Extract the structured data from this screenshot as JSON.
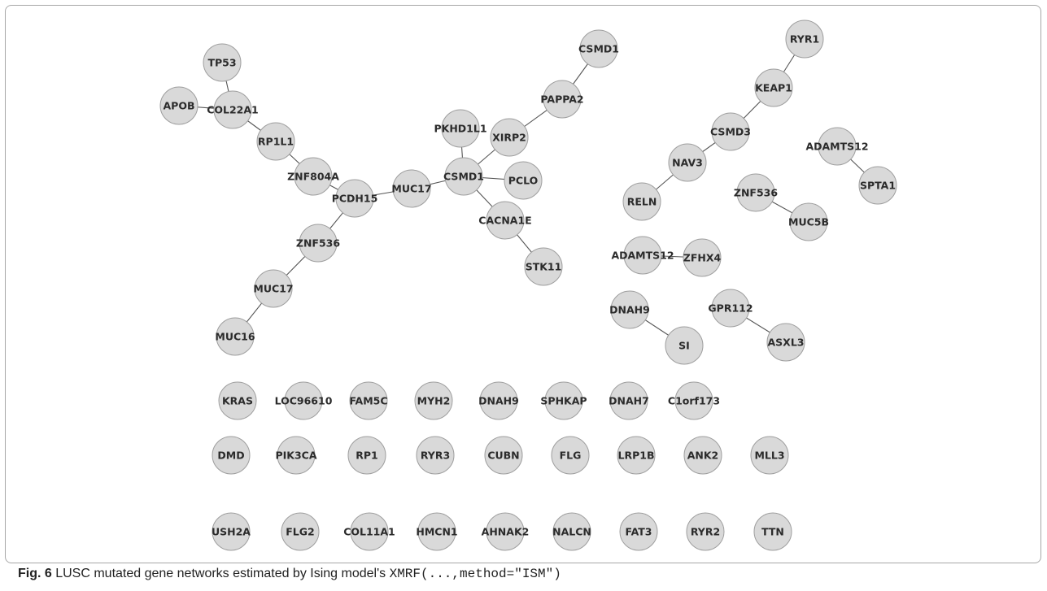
{
  "figure": {
    "label": "Fig. 6",
    "caption_text": " LUSC mutated gene networks estimated by Ising model's ",
    "caption_code": "XMRF(...,method=\"ISM\")"
  },
  "network": {
    "node_color": "#d9d9d9",
    "node_stroke": "#9e9e9e",
    "edge_color": "#555555",
    "nodes": [
      {
        "id": "tp53",
        "label": "TP53"
      },
      {
        "id": "apob",
        "label": "APOB"
      },
      {
        "id": "col22a1",
        "label": "COL22A1"
      },
      {
        "id": "rp1l1",
        "label": "RP1L1"
      },
      {
        "id": "znf804a",
        "label": "ZNF804A"
      },
      {
        "id": "pcdh15",
        "label": "PCDH15"
      },
      {
        "id": "znf536-a",
        "label": "ZNF536"
      },
      {
        "id": "muc17-a",
        "label": "MUC17"
      },
      {
        "id": "muc16",
        "label": "MUC16"
      },
      {
        "id": "muc17-b",
        "label": "MUC17"
      },
      {
        "id": "csmd1-a",
        "label": "CSMD1"
      },
      {
        "id": "pkhd1l1",
        "label": "PKHD1L1"
      },
      {
        "id": "xirp2",
        "label": "XIRP2"
      },
      {
        "id": "pappa2",
        "label": "PAPPA2"
      },
      {
        "id": "csmd1-b",
        "label": "CSMD1"
      },
      {
        "id": "pclo",
        "label": "PCLO"
      },
      {
        "id": "cacna1e",
        "label": "CACNA1E"
      },
      {
        "id": "stk11",
        "label": "STK11"
      },
      {
        "id": "ryr1",
        "label": "RYR1"
      },
      {
        "id": "keap1",
        "label": "KEAP1"
      },
      {
        "id": "csmd3",
        "label": "CSMD3"
      },
      {
        "id": "nav3",
        "label": "NAV3"
      },
      {
        "id": "reln",
        "label": "RELN"
      },
      {
        "id": "adamts12-a",
        "label": "ADAMTS12"
      },
      {
        "id": "spta1",
        "label": "SPTA1"
      },
      {
        "id": "znf536-b",
        "label": "ZNF536"
      },
      {
        "id": "muc5b",
        "label": "MUC5B"
      },
      {
        "id": "adamts12-b",
        "label": "ADAMTS12"
      },
      {
        "id": "zfhx4",
        "label": "ZFHX4"
      },
      {
        "id": "dnah9-a",
        "label": "DNAH9"
      },
      {
        "id": "si",
        "label": "SI"
      },
      {
        "id": "gpr112",
        "label": "GPR112"
      },
      {
        "id": "asxl3",
        "label": "ASXL3"
      },
      {
        "id": "kras",
        "label": "KRAS"
      },
      {
        "id": "loc96610",
        "label": "LOC96610"
      },
      {
        "id": "fam5c",
        "label": "FAM5C"
      },
      {
        "id": "myh2",
        "label": "MYH2"
      },
      {
        "id": "dnah9-b",
        "label": "DNAH9"
      },
      {
        "id": "sphkap",
        "label": "SPHKAP"
      },
      {
        "id": "dnah7",
        "label": "DNAH7"
      },
      {
        "id": "c1orf173",
        "label": "C1orf173"
      },
      {
        "id": "dmd",
        "label": "DMD"
      },
      {
        "id": "pik3ca",
        "label": "PIK3CA"
      },
      {
        "id": "rp1",
        "label": "RP1"
      },
      {
        "id": "ryr3",
        "label": "RYR3"
      },
      {
        "id": "cubn",
        "label": "CUBN"
      },
      {
        "id": "flg",
        "label": "FLG"
      },
      {
        "id": "lrp1b",
        "label": "LRP1B"
      },
      {
        "id": "ank2",
        "label": "ANK2"
      },
      {
        "id": "mll3",
        "label": "MLL3"
      },
      {
        "id": "ush2a",
        "label": "USH2A"
      },
      {
        "id": "flg2",
        "label": "FLG2"
      },
      {
        "id": "col11a1",
        "label": "COL11A1"
      },
      {
        "id": "hmcn1",
        "label": "HMCN1"
      },
      {
        "id": "ahnak2",
        "label": "AHNAK2"
      },
      {
        "id": "nalcn",
        "label": "NALCN"
      },
      {
        "id": "fat3",
        "label": "FAT3"
      },
      {
        "id": "ryr2",
        "label": "RYR2"
      },
      {
        "id": "ttn",
        "label": "TTN"
      }
    ],
    "edges": [
      [
        "tp53",
        "col22a1"
      ],
      [
        "apob",
        "col22a1"
      ],
      [
        "col22a1",
        "rp1l1"
      ],
      [
        "rp1l1",
        "znf804a"
      ],
      [
        "znf804a",
        "pcdh15"
      ],
      [
        "pcdh15",
        "muc17-b"
      ],
      [
        "pcdh15",
        "znf536-a"
      ],
      [
        "znf536-a",
        "muc17-a"
      ],
      [
        "muc17-a",
        "muc16"
      ],
      [
        "muc17-b",
        "csmd1-a"
      ],
      [
        "csmd1-a",
        "pkhd1l1"
      ],
      [
        "csmd1-a",
        "xirp2"
      ],
      [
        "csmd1-a",
        "pclo"
      ],
      [
        "csmd1-a",
        "cacna1e"
      ],
      [
        "cacna1e",
        "stk11"
      ],
      [
        "xirp2",
        "pappa2"
      ],
      [
        "pappa2",
        "csmd1-b"
      ],
      [
        "ryr1",
        "keap1"
      ],
      [
        "keap1",
        "csmd3"
      ],
      [
        "csmd3",
        "nav3"
      ],
      [
        "nav3",
        "reln"
      ],
      [
        "adamts12-a",
        "spta1"
      ],
      [
        "znf536-b",
        "muc5b"
      ],
      [
        "adamts12-b",
        "zfhx4"
      ],
      [
        "dnah9-a",
        "si"
      ],
      [
        "gpr112",
        "asxl3"
      ]
    ]
  }
}
